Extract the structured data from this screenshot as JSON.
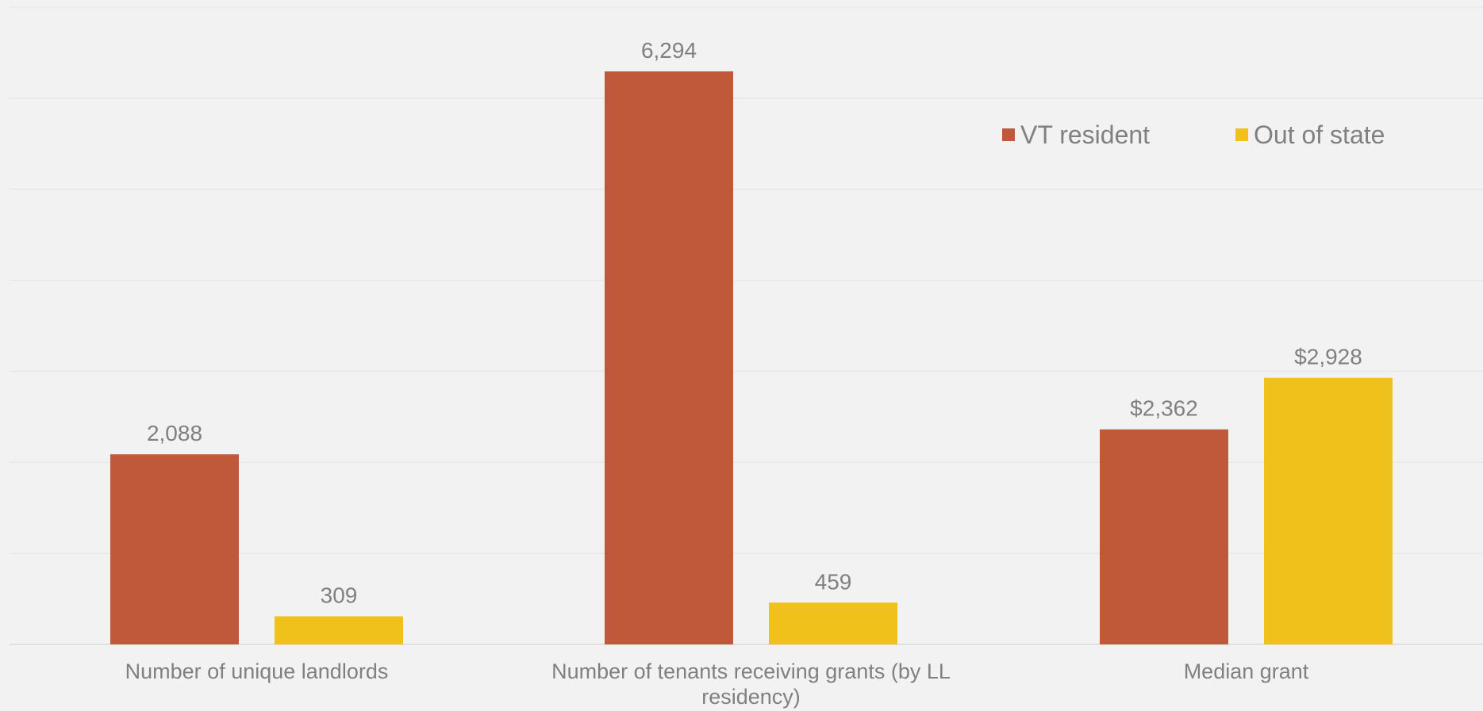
{
  "chart_data": {
    "type": "bar",
    "categories": [
      "Number of unique landlords",
      "Number of tenants receiving grants (by LL residency)",
      "Median grant"
    ],
    "category_label_lines": [
      [
        "Number of unique landlords"
      ],
      [
        "Number of tenants receiving grants (by LL",
        "residency)"
      ],
      [
        "Median grant"
      ]
    ],
    "series": [
      {
        "name": "VT resident",
        "color": "#c0583a",
        "values": [
          2088,
          6294,
          2362
        ],
        "labels": [
          "2,088",
          "6,294",
          "$2,362"
        ]
      },
      {
        "name": "Out of state",
        "color": "#efc11a",
        "values": [
          309,
          459,
          2928
        ],
        "labels": [
          "309",
          "459",
          "$2,928"
        ]
      }
    ],
    "ylim": [
      0,
      7000
    ],
    "grid": true,
    "gridline_step": 1000,
    "legend_position": "top-right",
    "title": "",
    "xlabel": "",
    "ylabel": ""
  }
}
